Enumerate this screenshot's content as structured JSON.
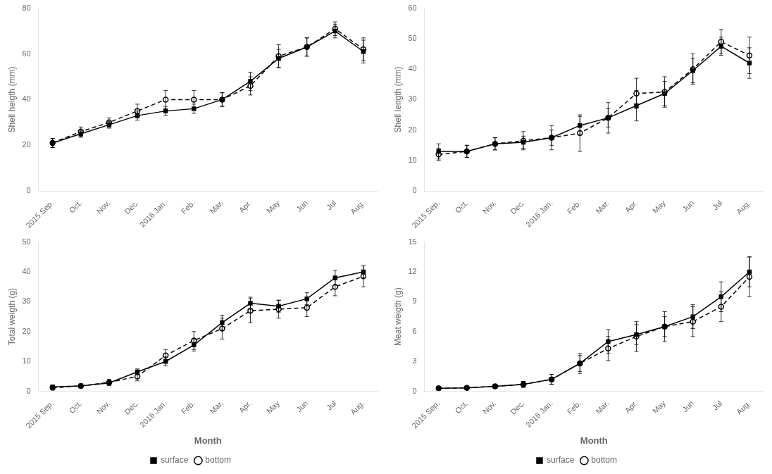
{
  "chart_data": [
    {
      "type": "line",
      "categories": [
        "2015 Sep.",
        "Oct.",
        "Nov.",
        "Dec.",
        "2016 Jan.",
        "Feb.",
        "Mar.",
        "Apr.",
        "May",
        "Jun",
        "Jul",
        "Aug."
      ],
      "y_label": "Shell heigth (mm)",
      "series": [
        {
          "name": "surface",
          "color": "#000000",
          "marker": "square",
          "line_style": "solid",
          "values": [
            21,
            25,
            29,
            33,
            35,
            36,
            40,
            48,
            58,
            63,
            70,
            61
          ],
          "errors": [
            2,
            1.5,
            1.5,
            2,
            2,
            2,
            3,
            4,
            4,
            4,
            3,
            5
          ]
        },
        {
          "name": "bottom",
          "color": "#000000",
          "marker": "circle",
          "line_style": "dashed",
          "values": [
            21,
            26,
            30,
            35,
            40,
            40,
            40,
            46,
            59,
            63,
            71,
            62
          ],
          "errors": [
            2,
            2,
            2,
            3,
            4,
            4,
            3,
            4,
            5,
            4,
            3,
            5
          ]
        }
      ],
      "ylim": [
        0,
        80
      ],
      "yticks": [
        0,
        20,
        40,
        60,
        80
      ],
      "grid": false
    },
    {
      "type": "line",
      "categories": [
        "2015 Sep.",
        "Oct.",
        "Nov.",
        "Dec.",
        "2016 Jan.",
        "Feb.",
        "Mar.",
        "Apr.",
        "May",
        "Jun",
        "Jul",
        "Aug."
      ],
      "y_label": "Shell length (mm)",
      "series": [
        {
          "name": "surface",
          "color": "#000000",
          "marker": "square",
          "line_style": "solid",
          "values": [
            13,
            13,
            15.5,
            16,
            17.5,
            21.5,
            24,
            28,
            32,
            39.5,
            47.5,
            42
          ],
          "errors": [
            2.5,
            2,
            2,
            2,
            2.5,
            3,
            3,
            5,
            4,
            4,
            3,
            5
          ]
        },
        {
          "name": "bottom",
          "color": "#000000",
          "marker": "circle",
          "line_style": "dashed",
          "values": [
            12,
            13,
            15.5,
            16.5,
            17.5,
            19,
            24,
            32,
            32.5,
            40,
            49,
            44.5
          ],
          "errors": [
            2,
            2,
            2,
            3,
            4,
            6,
            5,
            5,
            5,
            5,
            4,
            6
          ]
        }
      ],
      "ylim": [
        0,
        60
      ],
      "yticks": [
        0,
        10,
        20,
        30,
        40,
        50,
        60
      ],
      "grid": false
    },
    {
      "type": "line",
      "categories": [
        "2015 Sep.",
        "Oct.",
        "Nov.",
        "Dec.",
        "2016 Jan.",
        "Feb.",
        "Mar.",
        "Apr.",
        "May",
        "Jun",
        "Jul",
        "Aug."
      ],
      "x_label": "Month",
      "y_label": "Total weigth (g)",
      "series": [
        {
          "name": "surface",
          "color": "#000000",
          "marker": "square",
          "line_style": "solid",
          "values": [
            1.5,
            1.8,
            2.8,
            6.5,
            10,
            15.5,
            23,
            29.5,
            28.5,
            31,
            38,
            40
          ],
          "errors": [
            0.5,
            0.5,
            0.8,
            1.0,
            1.5,
            2.0,
            2.5,
            2.0,
            2.0,
            2.0,
            2.5,
            2.0
          ]
        },
        {
          "name": "bottom",
          "color": "#000000",
          "marker": "circle",
          "line_style": "dashed",
          "values": [
            1.2,
            1.8,
            3.0,
            5.0,
            12,
            17,
            21,
            27,
            27.5,
            28,
            35,
            38.5
          ],
          "errors": [
            0.5,
            0.5,
            1.0,
            1.5,
            2.0,
            3.0,
            3.5,
            4.0,
            3.0,
            3.0,
            3.0,
            3.5
          ]
        }
      ],
      "ylim": [
        0,
        50
      ],
      "yticks": [
        0,
        10,
        20,
        30,
        40,
        50
      ],
      "grid": false,
      "legend": "bottom"
    },
    {
      "type": "line",
      "categories": [
        "2015 Sep.",
        "Oct.",
        "Nov.",
        "Dec.",
        "2016 Jan.",
        "Feb.",
        "Mar.",
        "Apr.",
        "May",
        "Jun",
        "Jul",
        "Aug."
      ],
      "x_label": "Month",
      "y_label": "Meat weigth (g)",
      "series": [
        {
          "name": "surface",
          "color": "#000000",
          "marker": "square",
          "line_style": "solid",
          "values": [
            0.3,
            0.35,
            0.5,
            0.7,
            1.2,
            2.8,
            5.0,
            5.7,
            6.5,
            7.5,
            9.5,
            12.0
          ],
          "errors": [
            0.1,
            0.1,
            0.2,
            0.3,
            0.5,
            0.8,
            1.2,
            1.0,
            1.0,
            1.2,
            1.5,
            1.5
          ]
        },
        {
          "name": "bottom",
          "color": "#000000",
          "marker": "circle",
          "line_style": "dashed",
          "values": [
            0.3,
            0.35,
            0.5,
            0.7,
            1.2,
            2.8,
            4.3,
            5.5,
            6.5,
            7.0,
            8.5,
            11.5
          ],
          "errors": [
            0.1,
            0.1,
            0.2,
            0.3,
            0.5,
            1.0,
            1.2,
            1.5,
            1.5,
            1.5,
            1.5,
            2.0
          ]
        }
      ],
      "ylim": [
        0,
        15
      ],
      "yticks": [
        0,
        3,
        6,
        9,
        12,
        15
      ],
      "grid": false,
      "legend": "bottom"
    }
  ]
}
